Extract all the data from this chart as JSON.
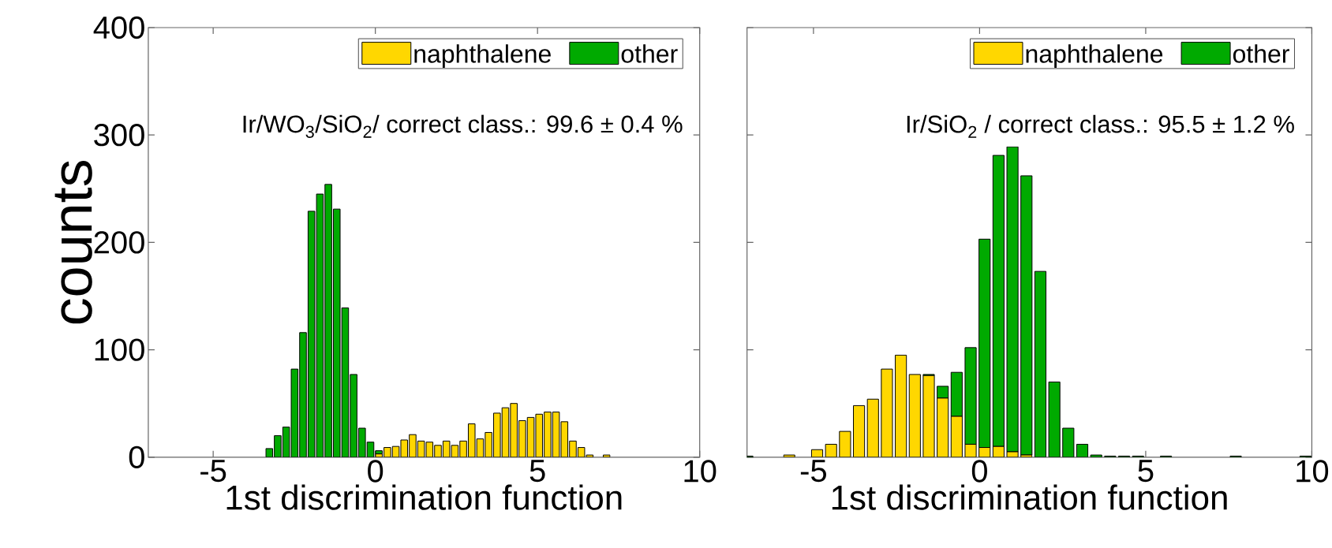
{
  "chart_data": [
    {
      "type": "bar",
      "stacked": true,
      "ylabel": "counts",
      "xlabel": "1st discrimination function",
      "annotations": [
        "Ir/WO$_{3}$/SiO$_{2}$/ correct class.: 99.6 ± 0.4 %"
      ],
      "x": [
        -3.27,
        -3.01,
        -2.75,
        -2.49,
        -2.23,
        -1.97,
        -1.71,
        -1.45,
        -1.19,
        -0.93,
        -0.67,
        -0.41,
        -0.15,
        0.11,
        0.37,
        0.63,
        0.89,
        1.15,
        1.41,
        1.67,
        1.93,
        2.19,
        2.45,
        2.71,
        2.97,
        3.23,
        3.49,
        3.75,
        4.01,
        4.27,
        4.53,
        4.79,
        5.05,
        5.31,
        5.57,
        5.83,
        6.09,
        6.35,
        6.61,
        6.87,
        7.13
      ],
      "series": [
        {
          "name": "naphthalene",
          "color": "#ffd700",
          "values": [
            0,
            0,
            0,
            0,
            0,
            0,
            0,
            0,
            0,
            0,
            0,
            0,
            0,
            3,
            9,
            10,
            16,
            21,
            15,
            14,
            11,
            15,
            11,
            15,
            31,
            17,
            23,
            41,
            46,
            50,
            34,
            37,
            40,
            42,
            42,
            33,
            15,
            9,
            2,
            0,
            2
          ]
        },
        {
          "name": "other",
          "color": "#00aa00",
          "values": [
            8,
            20,
            28,
            82,
            116,
            229,
            245,
            254,
            231,
            139,
            77,
            27,
            14,
            3,
            null,
            null,
            null,
            null,
            null,
            null,
            null,
            null,
            null,
            null,
            null,
            null,
            null,
            null,
            null,
            null,
            null,
            null,
            null,
            null,
            null,
            null,
            null,
            null,
            null,
            null,
            null
          ]
        }
      ],
      "xlim": [
        -7,
        10
      ],
      "xticks": [
        -5,
        0,
        5,
        10
      ],
      "ylim": [
        0,
        400
      ],
      "yticks": [
        0,
        100,
        200,
        300,
        400
      ],
      "legend": "top right"
    },
    {
      "type": "bar",
      "stacked": true,
      "xlabel": "1st discrimination function",
      "annotations": [
        "Ir/SiO$_{2}$ / correct class.: 95.5 ± 1.2 %"
      ],
      "x": [
        -6.99,
        -6.57,
        -6.15,
        -5.73,
        -5.31,
        -4.89,
        -4.47,
        -4.05,
        -3.63,
        -3.21,
        -2.79,
        -2.37,
        -1.95,
        -1.53,
        -1.11,
        -0.69,
        -0.27,
        0.15,
        0.57,
        0.99,
        1.41,
        1.83,
        2.25,
        2.67,
        3.09,
        3.51,
        3.93,
        4.35,
        4.77,
        5.19,
        5.61,
        6.03,
        6.45,
        6.87,
        7.29,
        7.71,
        8.13,
        8.55,
        8.97,
        9.39,
        9.81
      ],
      "series": [
        {
          "name": "naphthalene",
          "color": "#ffd700",
          "values": [
            0,
            0,
            0,
            2,
            0,
            7,
            12,
            24,
            48,
            54,
            82,
            95,
            77,
            76,
            55,
            38,
            12,
            9,
            10,
            5,
            2,
            0,
            0,
            0,
            0,
            0,
            0,
            0,
            0,
            0,
            0,
            0,
            0,
            0,
            0,
            0,
            0,
            0,
            0,
            0,
            0
          ]
        },
        {
          "name": "other",
          "color": "#00aa00",
          "values": [
            1,
            0,
            0,
            0,
            0,
            0,
            0,
            0,
            0,
            0,
            0,
            0,
            0,
            1,
            11,
            41,
            90,
            194,
            271,
            284,
            260,
            173,
            70,
            27,
            12,
            2,
            1,
            1,
            1,
            0,
            1,
            0,
            0,
            0,
            0,
            1,
            0,
            0,
            0,
            0,
            1
          ]
        }
      ],
      "xlim": [
        -7,
        10
      ],
      "xticks": [
        -5,
        0,
        5,
        10
      ],
      "ylim": [
        0,
        400
      ],
      "yticks": [
        0,
        100,
        200,
        300,
        400
      ],
      "legend": "top right",
      "tick_labels": "x"
    }
  ]
}
